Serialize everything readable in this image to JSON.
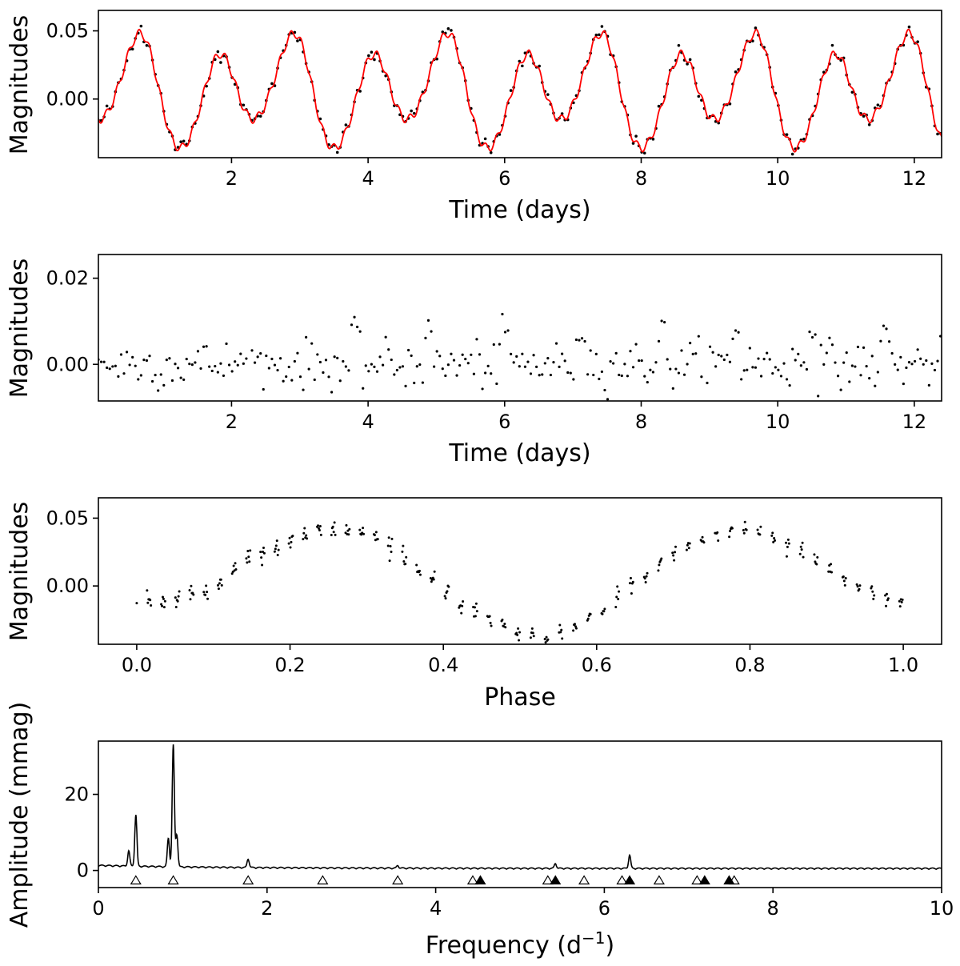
{
  "chart_data": [
    {
      "type": "line",
      "xlabel": "Time (days)",
      "ylabel": "Magnitudes",
      "xlim": [
        0.05,
        12.4
      ],
      "ylim": [
        -0.043,
        0.065
      ],
      "xticks": [
        2,
        4,
        6,
        8,
        10,
        12
      ],
      "yticks": [
        0.0,
        0.05
      ],
      "xtick_labels": [
        "2",
        "4",
        "6",
        "8",
        "10",
        "12"
      ],
      "ytick_labels": [
        "0.00",
        "0.05"
      ],
      "grid": false,
      "series": [
        {
          "kind": "scatter",
          "color": "#000000",
          "desc": "observed light curve, sampled every 0.0417 d"
        },
        {
          "kind": "line",
          "color": "#ff0000",
          "desc": "multi-frequency fit"
        }
      ],
      "model": {
        "terms": [
          {
            "freq": 0.888,
            "amp": 0.0325,
            "phase": 0.6
          },
          {
            "freq": 0.444,
            "amp": 0.0135,
            "phase": 0.15
          },
          {
            "freq": 6.3,
            "amp": 0.003,
            "phase": 0.05
          },
          {
            "freq": 1.776,
            "amp": 0.002,
            "phase": 0.3
          }
        ],
        "offset": 0.006
      }
    },
    {
      "type": "scatter",
      "xlabel": "Time (days)",
      "ylabel": "Magnitudes",
      "xlim": [
        0.05,
        12.4
      ],
      "ylim": [
        -0.0085,
        0.0255
      ],
      "xticks": [
        2,
        4,
        6,
        8,
        10,
        12
      ],
      "yticks": [
        0.0,
        0.02
      ],
      "xtick_labels": [
        "2",
        "4",
        "6",
        "8",
        "10",
        "12"
      ],
      "ytick_labels": [
        "0.00",
        "0.02"
      ],
      "grid": false,
      "series": [
        {
          "kind": "scatter",
          "color": "#000000",
          "desc": "residuals after fit",
          "noise_sigma": 0.0028,
          "spike_times": [
            3.8,
            4.9,
            6.0,
            7.15,
            8.3,
            9.4,
            10.5,
            11.6
          ],
          "spike_amp": 0.0075
        }
      ]
    },
    {
      "type": "scatter",
      "xlabel": "Phase",
      "ylabel": "Magnitudes",
      "xlim": [
        -0.05,
        1.05
      ],
      "ylim": [
        -0.043,
        0.065
      ],
      "xticks": [
        0.0,
        0.2,
        0.4,
        0.6,
        0.8,
        1.0
      ],
      "yticks": [
        0.0,
        0.05
      ],
      "xtick_labels": [
        "0.0",
        "0.2",
        "0.4",
        "0.6",
        "0.8",
        "1.0"
      ],
      "ytick_labels": [
        "0.00",
        "0.05"
      ],
      "grid": false,
      "series": [
        {
          "kind": "scatter",
          "color": "#000000",
          "desc": "light curve folded on 0.444 d^-1"
        }
      ]
    },
    {
      "type": "line",
      "xlabel": "Frequency (d$^{-1}$)",
      "xlabel_text": "Frequency (d",
      "xlabel_sup": "−1",
      "xlabel_close": ")",
      "ylabel": "Amplitude (mmag)",
      "xlim": [
        0,
        10
      ],
      "ylim": [
        -4.5,
        34
      ],
      "xticks": [
        0,
        2,
        4,
        6,
        8,
        10
      ],
      "yticks": [
        0,
        20
      ],
      "xtick_labels": [
        "0",
        "2",
        "4",
        "6",
        "8",
        "10"
      ],
      "ytick_labels": [
        "0",
        "20"
      ],
      "grid": false,
      "peaks": [
        {
          "f": 0.444,
          "a": 13.5
        },
        {
          "f": 0.888,
          "a": 32.0
        },
        {
          "f": 0.93,
          "a": 8.5
        },
        {
          "f": 0.83,
          "a": 7.5
        },
        {
          "f": 0.36,
          "a": 4.0
        },
        {
          "f": 1.776,
          "a": 2.3
        },
        {
          "f": 6.3,
          "a": 3.5
        },
        {
          "f": 5.42,
          "a": 1.3
        },
        {
          "f": 3.55,
          "a": 0.7
        }
      ],
      "open_markers": [
        0.444,
        0.888,
        1.776,
        2.66,
        3.55,
        4.44,
        5.33,
        5.76,
        6.21,
        6.65,
        7.1,
        7.54
      ],
      "filled_markers": [
        4.53,
        5.42,
        6.3,
        7.19,
        7.48
      ],
      "marker_y": -2.5
    }
  ]
}
